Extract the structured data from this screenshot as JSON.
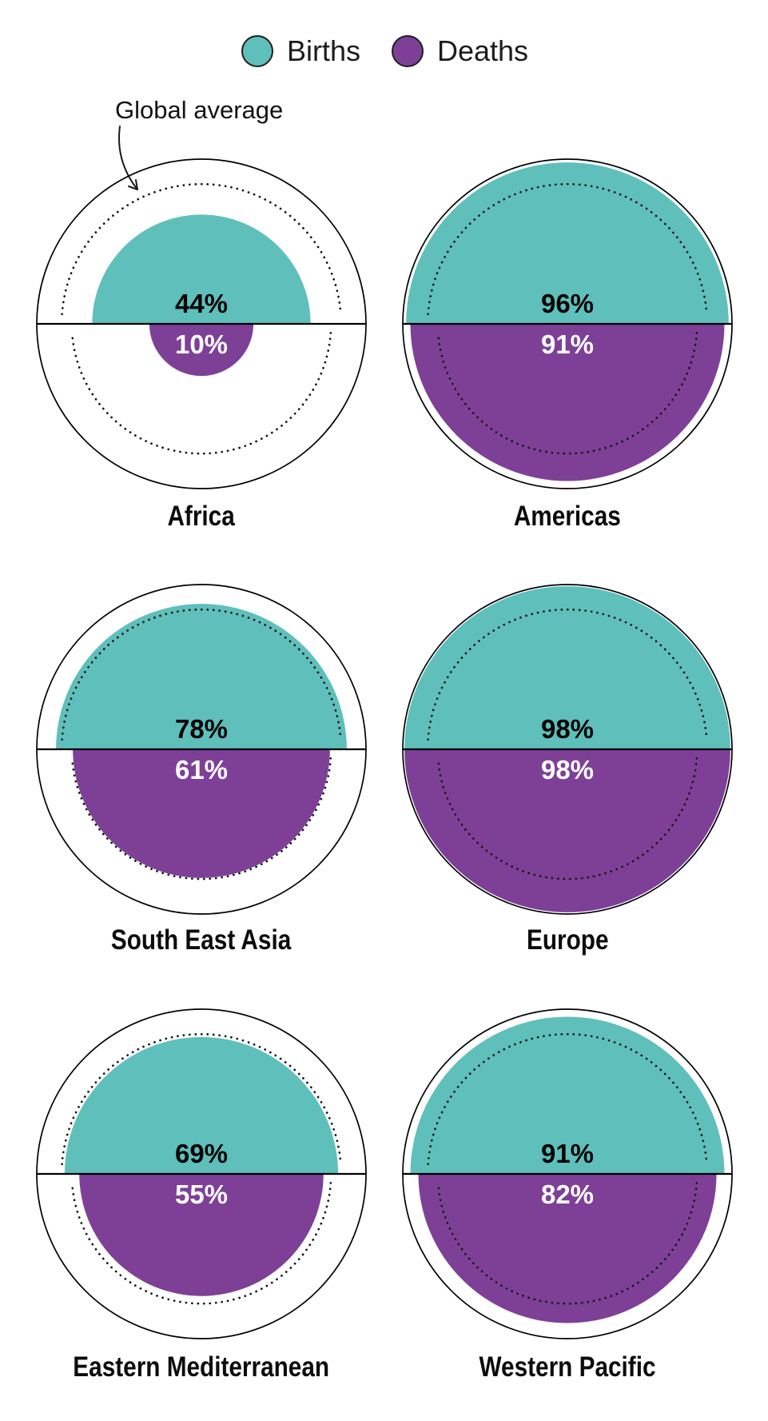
{
  "legend": {
    "items": [
      {
        "label": "Births",
        "color": "#5fbfbb"
      },
      {
        "label": "Deaths",
        "color": "#7e4097"
      }
    ]
  },
  "annotation": {
    "label": "Global average"
  },
  "chart_data": {
    "type": "pie",
    "subtype": "split-half-circle, area-proportional",
    "description": "Six circles, one per WHO region. Top teal half-disc area = share of births registered; bottom purple half-disc area = share of deaths registered. Thin outer circle = 100%. Dotted rings mark the global average (values estimated from ring radii, not labelled on screen).",
    "unit": "%",
    "legend_position": "top-center",
    "colors": {
      "births": "#5fbfbb",
      "deaths": "#7e4097",
      "outline": "#000000",
      "dots": "#131313"
    },
    "global_average_estimated": {
      "births": 72,
      "deaths": 62
    },
    "regions": [
      {
        "name": "Africa",
        "births": 44,
        "deaths": 10,
        "births_label": "44%",
        "deaths_label": "10%"
      },
      {
        "name": "Americas",
        "births": 96,
        "deaths": 91,
        "births_label": "96%",
        "deaths_label": "91%"
      },
      {
        "name": "South East Asia",
        "births": 78,
        "deaths": 61,
        "births_label": "78%",
        "deaths_label": "61%"
      },
      {
        "name": "Europe",
        "births": 98,
        "deaths": 98,
        "births_label": "98%",
        "deaths_label": "98%"
      },
      {
        "name": "Eastern Mediterranean",
        "births": 69,
        "deaths": 55,
        "births_label": "69%",
        "deaths_label": "55%"
      },
      {
        "name": "Western Pacific",
        "births": 91,
        "deaths": 82,
        "births_label": "91%",
        "deaths_label": "82%"
      }
    ]
  }
}
